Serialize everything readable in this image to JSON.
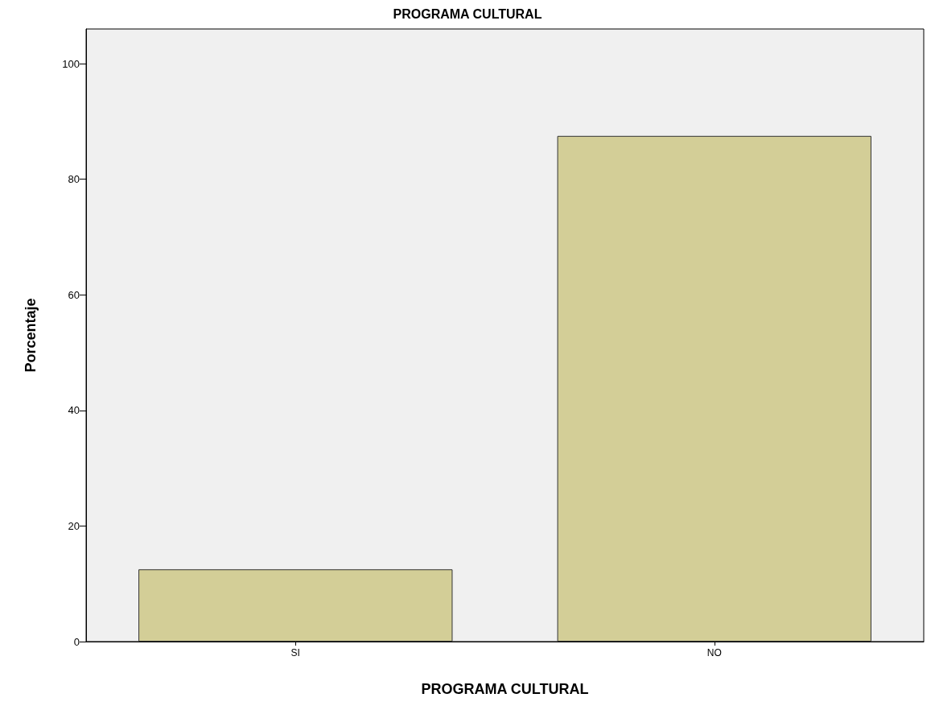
{
  "chart_data": {
    "type": "bar",
    "title": "PROGRAMA CULTURAL",
    "xlabel": "PROGRAMA CULTURAL",
    "ylabel": "Porcentaje",
    "categories": [
      "SI",
      "NO"
    ],
    "series": [
      {
        "color": "#d3ce97",
        "values": [
          12.5,
          87.5
        ]
      }
    ],
    "ylim": [
      0,
      106
    ],
    "yticks": [
      0,
      20,
      40,
      60,
      80,
      100
    ],
    "grid": false
  }
}
